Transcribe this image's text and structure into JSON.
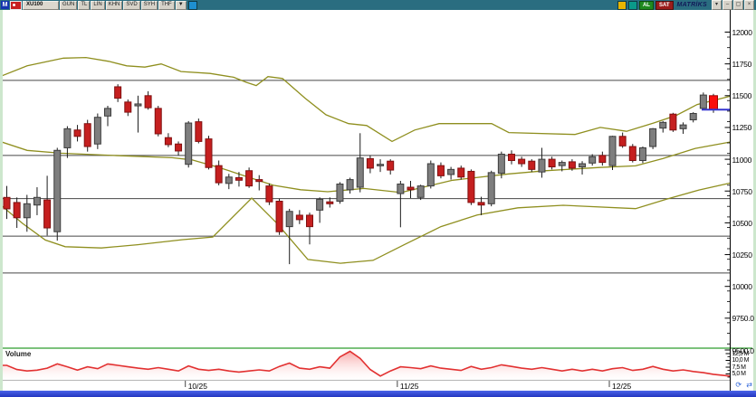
{
  "titlebar": {
    "logo": "M",
    "symbol": "XU100",
    "buttons": [
      "GÜN",
      "TL",
      "LİN",
      "KHN",
      "SVD",
      "SYH",
      "THF"
    ],
    "dropdown_arrow": "▼",
    "buy_label": "AL",
    "sell_label": "SAT",
    "brand": "MATRİKS",
    "window_buttons": [
      "▾",
      "–",
      "▢",
      "×"
    ],
    "colors": {
      "bar": "#2a6d80",
      "buy": "#1f8a1f",
      "sell": "#9b1c1c"
    }
  },
  "price_axis": {
    "labels": [
      "12000",
      "11750",
      "11500",
      "11250",
      "11000",
      "10750",
      "10500",
      "10250",
      "10000",
      "9750.0",
      "9500.0"
    ],
    "values": [
      12000,
      11750,
      11500,
      11250,
      11000,
      10750,
      10500,
      10250,
      10000,
      9750,
      9500
    ]
  },
  "volume_axis": {
    "labels": [
      "12,5 M",
      "10,0 M",
      "7,5 M",
      "5,0 M"
    ]
  },
  "x_axis": {
    "ticks": [
      {
        "label": "10/25",
        "index": 18
      },
      {
        "label": "11/25",
        "index": 39
      },
      {
        "label": "12/25",
        "index": 60
      }
    ]
  },
  "volume_panel": {
    "label": "Volume"
  },
  "corner": {
    "refresh": "⟳",
    "pan": "⇄"
  },
  "chart_data": {
    "type": "candlestick",
    "symbol": "XU100",
    "interval": "daily",
    "price_range_visible": [
      9500,
      12180
    ],
    "up_color": "#7e7e7e",
    "down_color": "#c51f1f",
    "last_candle_color": "#fb0d0d",
    "wick_color": "#1b1b1b",
    "level_color": "#474747",
    "band_color": "#8f8f1f",
    "volume_line_color": "#e23131",
    "horizontal_levels": [
      11620,
      11030,
      10690,
      10395,
      10105
    ],
    "last_close": {
      "price": 11390,
      "marker_color": "#3535cf"
    },
    "candles_ohlc": [
      [
        10700,
        10790,
        10530,
        10610
      ],
      [
        10660,
        10700,
        10460,
        10540
      ],
      [
        10540,
        10720,
        10430,
        10650
      ],
      [
        10640,
        10780,
        10560,
        10700
      ],
      [
        10680,
        10870,
        10400,
        10460
      ],
      [
        10430,
        11090,
        10360,
        11070
      ],
      [
        11090,
        11260,
        11010,
        11240
      ],
      [
        11230,
        11270,
        11140,
        11180
      ],
      [
        11280,
        11310,
        11060,
        11100
      ],
      [
        11120,
        11360,
        11080,
        11330
      ],
      [
        11340,
        11420,
        11260,
        11400
      ],
      [
        11570,
        11590,
        11450,
        11480
      ],
      [
        11450,
        11470,
        11340,
        11370
      ],
      [
        11420,
        11500,
        11210,
        11435
      ],
      [
        11500,
        11535,
        11390,
        11405
      ],
      [
        11400,
        11420,
        11180,
        11200
      ],
      [
        11170,
        11205,
        11095,
        11115
      ],
      [
        11120,
        11140,
        11030,
        11065
      ],
      [
        10960,
        11300,
        10935,
        11285
      ],
      [
        11295,
        11320,
        11125,
        11140
      ],
      [
        11160,
        11185,
        10920,
        10935
      ],
      [
        10950,
        10990,
        10795,
        10815
      ],
      [
        10810,
        10885,
        10765,
        10860
      ],
      [
        10855,
        10900,
        10785,
        10835
      ],
      [
        10910,
        10935,
        10775,
        10790
      ],
      [
        10840,
        10875,
        10755,
        10825
      ],
      [
        10790,
        10810,
        10640,
        10665
      ],
      [
        10670,
        10690,
        10405,
        10430
      ],
      [
        10470,
        10610,
        10175,
        10590
      ],
      [
        10560,
        10600,
        10490,
        10525
      ],
      [
        10560,
        10580,
        10330,
        10470
      ],
      [
        10600,
        10700,
        10500,
        10685
      ],
      [
        10665,
        10700,
        10620,
        10650
      ],
      [
        10670,
        10820,
        10650,
        10805
      ],
      [
        10760,
        10855,
        10730,
        10840
      ],
      [
        10780,
        11205,
        10740,
        11010
      ],
      [
        11005,
        11030,
        10890,
        10930
      ],
      [
        10950,
        11000,
        10900,
        10960
      ],
      [
        10985,
        11000,
        10880,
        10915
      ],
      [
        10730,
        10830,
        10465,
        10805
      ],
      [
        10780,
        10830,
        10695,
        10760
      ],
      [
        10700,
        10800,
        10680,
        10790
      ],
      [
        10790,
        10990,
        10770,
        10965
      ],
      [
        10950,
        10975,
        10850,
        10870
      ],
      [
        10880,
        10940,
        10840,
        10920
      ],
      [
        10930,
        10950,
        10840,
        10860
      ],
      [
        10905,
        10920,
        10640,
        10660
      ],
      [
        10660,
        10705,
        10560,
        10640
      ],
      [
        10650,
        10910,
        10630,
        10895
      ],
      [
        10890,
        11060,
        10850,
        11040
      ],
      [
        11040,
        11070,
        10960,
        10990
      ],
      [
        11000,
        11020,
        10940,
        10965
      ],
      [
        10985,
        11000,
        10900,
        10920
      ],
      [
        10900,
        11090,
        10855,
        11000
      ],
      [
        11000,
        11020,
        10920,
        10940
      ],
      [
        10950,
        10990,
        10905,
        10975
      ],
      [
        10980,
        11000,
        10910,
        10930
      ],
      [
        10940,
        10985,
        10880,
        10965
      ],
      [
        10970,
        11040,
        10950,
        11020
      ],
      [
        11030,
        11060,
        10950,
        10975
      ],
      [
        10950,
        11185,
        10915,
        11180
      ],
      [
        11180,
        11210,
        11090,
        11105
      ],
      [
        11100,
        11120,
        10975,
        10990
      ],
      [
        10990,
        11100,
        10970,
        11090
      ],
      [
        11100,
        11245,
        11080,
        11240
      ],
      [
        11245,
        11300,
        11210,
        11290
      ],
      [
        11355,
        11365,
        11215,
        11230
      ],
      [
        11240,
        11290,
        11200,
        11270
      ],
      [
        11310,
        11370,
        11290,
        11360
      ],
      [
        11400,
        11525,
        11390,
        11505
      ],
      [
        11500,
        11515,
        11365,
        11390
      ]
    ],
    "volume_relative": [
      0.5,
      0.35,
      0.3,
      0.33,
      0.4,
      0.55,
      0.45,
      0.33,
      0.45,
      0.38,
      0.55,
      0.5,
      0.45,
      0.4,
      0.36,
      0.42,
      0.36,
      0.3,
      0.48,
      0.36,
      0.32,
      0.36,
      0.3,
      0.26,
      0.3,
      0.34,
      0.3,
      0.46,
      0.58,
      0.4,
      0.36,
      0.45,
      0.4,
      0.8,
      1.0,
      0.75,
      0.35,
      0.12,
      0.3,
      0.45,
      0.42,
      0.38,
      0.48,
      0.4,
      0.36,
      0.32,
      0.46,
      0.36,
      0.42,
      0.52,
      0.46,
      0.4,
      0.36,
      0.42,
      0.36,
      0.3,
      0.36,
      0.3,
      0.36,
      0.3,
      0.38,
      0.42,
      0.32,
      0.36,
      0.46,
      0.36,
      0.3,
      0.34,
      0.28,
      0.24,
      0.18
    ],
    "bollinger_bands": {
      "upper": [
        [
          0,
          11650
        ],
        [
          30,
          11735
        ],
        [
          70,
          11795
        ],
        [
          95,
          11800
        ],
        [
          120,
          11770
        ],
        [
          140,
          11735
        ],
        [
          160,
          11725
        ],
        [
          178,
          11750
        ],
        [
          200,
          11690
        ],
        [
          232,
          11675
        ],
        [
          258,
          11645
        ],
        [
          272,
          11605
        ],
        [
          283,
          11580
        ],
        [
          296,
          11650
        ],
        [
          312,
          11635
        ],
        [
          337,
          11480
        ],
        [
          360,
          11350
        ],
        [
          385,
          11280
        ],
        [
          405,
          11265
        ],
        [
          433,
          11140
        ],
        [
          458,
          11230
        ],
        [
          485,
          11280
        ],
        [
          543,
          11280
        ],
        [
          562,
          11210
        ],
        [
          635,
          11195
        ],
        [
          663,
          11250
        ],
        [
          692,
          11220
        ],
        [
          722,
          11285
        ],
        [
          747,
          11345
        ],
        [
          770,
          11430
        ],
        [
          806,
          11495
        ]
      ],
      "middle": [
        [
          0,
          11140
        ],
        [
          30,
          11070
        ],
        [
          67,
          11048
        ],
        [
          133,
          11028
        ],
        [
          190,
          11012
        ],
        [
          212,
          10995
        ],
        [
          242,
          10935
        ],
        [
          272,
          10865
        ],
        [
          302,
          10795
        ],
        [
          332,
          10760
        ],
        [
          362,
          10745
        ],
        [
          402,
          10770
        ],
        [
          443,
          10738
        ],
        [
          500,
          10835
        ],
        [
          562,
          10885
        ],
        [
          602,
          10910
        ],
        [
          662,
          10935
        ],
        [
          702,
          10948
        ],
        [
          732,
          11005
        ],
        [
          768,
          11085
        ],
        [
          806,
          11135
        ]
      ],
      "lower": [
        [
          0,
          10645
        ],
        [
          25,
          10495
        ],
        [
          50,
          10365
        ],
        [
          72,
          10312
        ],
        [
          112,
          10302
        ],
        [
          152,
          10328
        ],
        [
          202,
          10368
        ],
        [
          235,
          10388
        ],
        [
          278,
          10695
        ],
        [
          306,
          10495
        ],
        [
          340,
          10212
        ],
        [
          376,
          10182
        ],
        [
          412,
          10205
        ],
        [
          447,
          10330
        ],
        [
          487,
          10470
        ],
        [
          527,
          10562
        ],
        [
          572,
          10618
        ],
        [
          622,
          10638
        ],
        [
          702,
          10612
        ],
        [
          737,
          10688
        ],
        [
          772,
          10758
        ],
        [
          806,
          10812
        ]
      ]
    }
  }
}
